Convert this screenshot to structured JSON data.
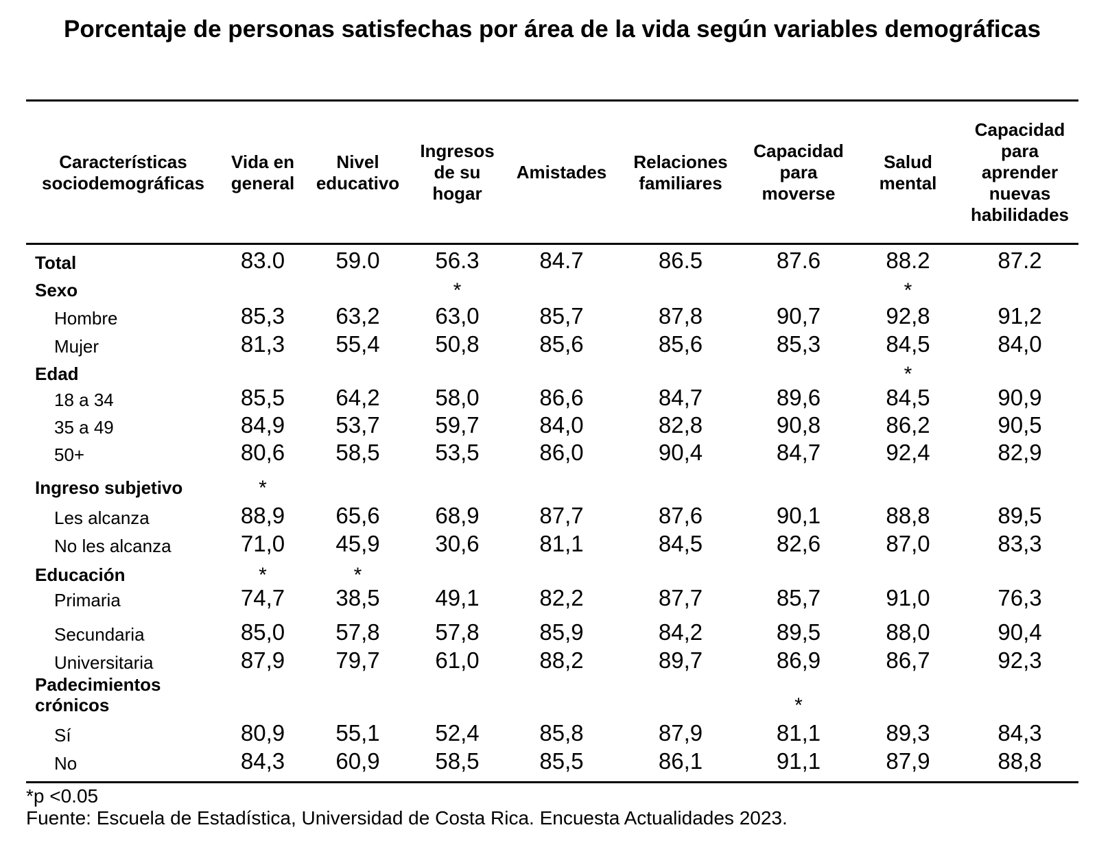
{
  "title": "Porcentaje de personas satisfechas por área de la vida según variables demográficas",
  "columns": [
    "Características sociodemográficas",
    "Vida en general",
    "Nivel educativo",
    "Ingresos de su hogar",
    "Amistades",
    "Relaciones familiares",
    "Capacidad para moverse",
    "Salud mental",
    "Capacidad para aprender nuevas habilidades"
  ],
  "total": {
    "label": "Total",
    "values": [
      "83.0",
      "59.0",
      "56.3",
      "84.7",
      "86.5",
      "87.6",
      "88.2",
      "87.2"
    ]
  },
  "groups": [
    {
      "label": "Sexo",
      "stars": [
        "",
        "",
        "*",
        "",
        "",
        "",
        "*",
        ""
      ],
      "rows": [
        {
          "label": "Hombre",
          "values": [
            "85,3",
            "63,2",
            "63,0",
            "85,7",
            "87,8",
            "90,7",
            "92,8",
            "91,2"
          ]
        },
        {
          "label": "Mujer",
          "values": [
            "81,3",
            "55,4",
            "50,8",
            "85,6",
            "85,6",
            "85,3",
            "84,5",
            "84,0"
          ]
        }
      ]
    },
    {
      "label": "Edad",
      "stars": [
        "",
        "",
        "",
        "",
        "",
        "",
        "*",
        ""
      ],
      "rows": [
        {
          "label": "18 a 34",
          "values": [
            "85,5",
            "64,2",
            "58,0",
            "86,6",
            "84,7",
            "89,6",
            "84,5",
            "90,9"
          ]
        },
        {
          "label": "35 a 49",
          "values": [
            "84,9",
            "53,7",
            "59,7",
            "84,0",
            "82,8",
            "90,8",
            "86,2",
            "90,5"
          ]
        },
        {
          "label": "50+",
          "values": [
            "80,6",
            "58,5",
            "53,5",
            "86,0",
            "90,4",
            "84,7",
            "92,4",
            "82,9"
          ]
        }
      ]
    },
    {
      "label": "Ingreso subjetivo",
      "stars": [
        "*",
        "",
        "",
        "",
        "",
        "",
        "",
        ""
      ],
      "rows": [
        {
          "label": "Les alcanza",
          "values": [
            "88,9",
            "65,6",
            "68,9",
            "87,7",
            "87,6",
            "90,1",
            "88,8",
            "89,5"
          ]
        },
        {
          "label": "No les alcanza",
          "values": [
            "71,0",
            "45,9",
            "30,6",
            "81,1",
            "84,5",
            "82,6",
            "87,0",
            "83,3"
          ]
        }
      ]
    },
    {
      "label": "Educación",
      "stars": [
        "*",
        "*",
        "",
        "",
        "",
        "",
        "",
        ""
      ],
      "rows": [
        {
          "label": "Primaria",
          "values": [
            "74,7",
            "38,5",
            "49,1",
            "82,2",
            "87,7",
            "85,7",
            "91,0",
            "76,3"
          ]
        },
        {
          "label": "Secundaria",
          "values": [
            "85,0",
            "57,8",
            "57,8",
            "85,9",
            "84,2",
            "89,5",
            "88,0",
            "90,4"
          ]
        },
        {
          "label": "Universitaria",
          "values": [
            "87,9",
            "79,7",
            "61,0",
            "88,2",
            "89,7",
            "86,9",
            "86,7",
            "92,3"
          ]
        }
      ]
    },
    {
      "label": "Padecimientos crónicos",
      "stars": [
        "",
        "",
        "",
        "",
        "",
        "*",
        "",
        ""
      ],
      "rows": [
        {
          "label": "Sí",
          "values": [
            "80,9",
            "55,1",
            "52,4",
            "85,8",
            "87,9",
            "81,1",
            "89,3",
            "84,3"
          ]
        },
        {
          "label": "No",
          "values": [
            "84,3",
            "60,9",
            "58,5",
            "85,5",
            "86,1",
            "91,1",
            "87,9",
            "88,8"
          ]
        }
      ]
    }
  ],
  "footnote": "*p <0.05",
  "source": "Fuente: Escuela de Estadística, Universidad de Costa Rica. Encuesta Actualidades 2023."
}
